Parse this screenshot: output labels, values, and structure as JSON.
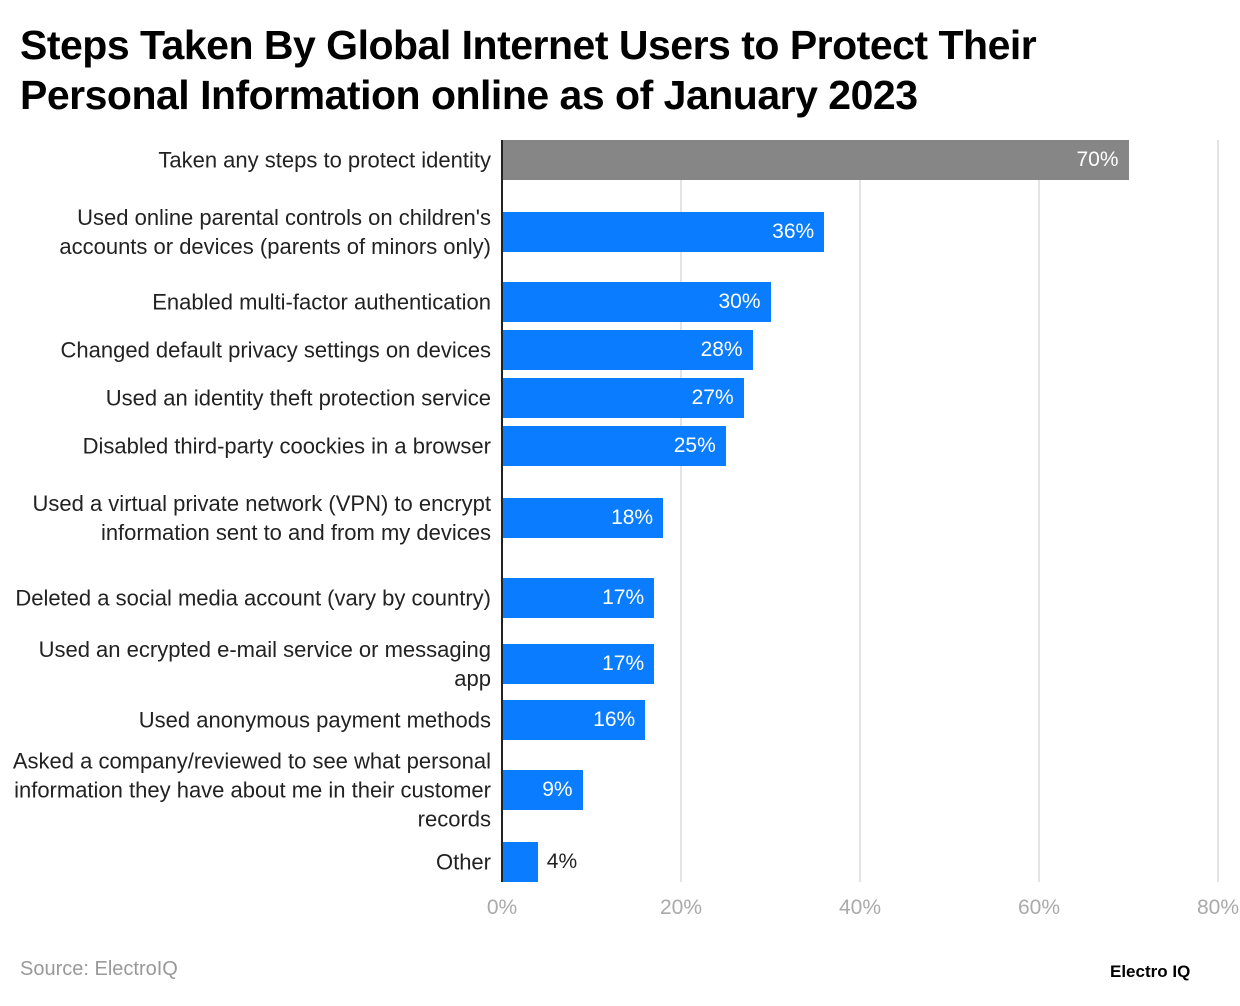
{
  "title": "Steps Taken By Global Internet Users to Protect Their Personal Information online as of January 2023",
  "source": "Source: ElectroIQ",
  "logo": "Electro IQ",
  "chart_data": {
    "type": "bar",
    "orientation": "horizontal",
    "title": "Steps Taken By Global Internet Users to Protect Their Personal Information online as of January 2023",
    "categories": [
      "Taken any steps to protect identity",
      "Used online parental controls on children's accounts or devices (parents of minors only)",
      "Enabled multi-factor authentication",
      "Changed default privacy settings on devices",
      "Used an identity theft protection service",
      "Disabled third-party coockies in a browser",
      "Used a virtual private network (VPN) to encrypt information sent to and from my devices",
      "Deleted a social media account (vary by country)",
      "Used an ecrypted e-mail service or messaging app",
      "Used anonymous payment methods",
      "Asked a company/reviewed to see what personal information they have about me in their customer records",
      "Other"
    ],
    "values": [
      70,
      36,
      30,
      28,
      27,
      25,
      18,
      17,
      17,
      16,
      9,
      4
    ],
    "data_labels": [
      "70%",
      "36%",
      "30%",
      "28%",
      "27%",
      "25%",
      "18%",
      "17%",
      "17%",
      "16%",
      "9%",
      "4%"
    ],
    "xlim": [
      0,
      80
    ],
    "ticks": [
      "0%",
      "20%",
      "40%",
      "60%",
      "80%"
    ],
    "grid": true,
    "colors": {
      "highlight": "#868686",
      "bar": "#0a7cff"
    }
  }
}
